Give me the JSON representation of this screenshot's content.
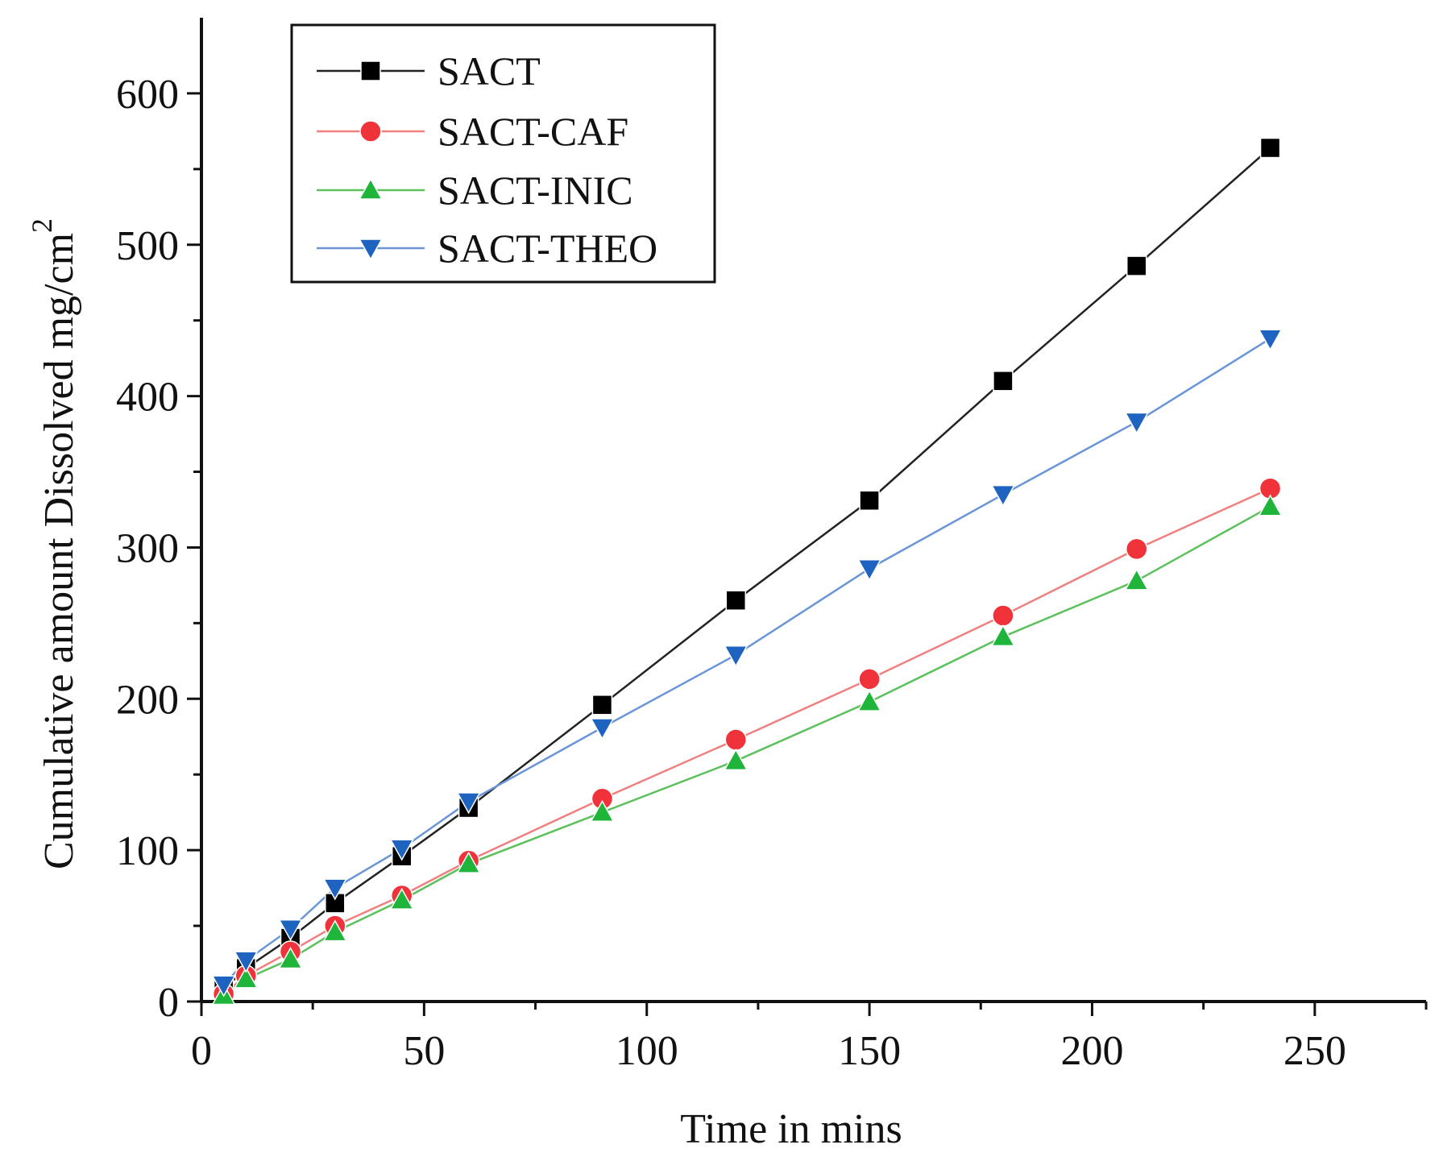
{
  "chart_data": {
    "type": "line",
    "title": "",
    "xlabel": "Time in mins",
    "ylabel_main": "Cumulative amount Dissolved mg/cm",
    "ylabel_superscript": "2",
    "xlim": [
      0,
      275
    ],
    "ylim": [
      0,
      650
    ],
    "x_ticks": [
      0,
      50,
      100,
      150,
      200,
      250
    ],
    "x_tick_labels": [
      "0",
      "50",
      "100",
      "150",
      "200",
      "250"
    ],
    "x_minor_ticks": [
      25,
      75,
      125,
      175,
      225,
      275
    ],
    "y_ticks": [
      0,
      100,
      200,
      300,
      400,
      500,
      600
    ],
    "y_tick_labels": [
      "0",
      "100",
      "200",
      "300",
      "400",
      "500",
      "600"
    ],
    "y_minor_ticks": [
      50,
      150,
      250,
      350,
      450,
      550
    ],
    "grid": false,
    "legend_position": "top-left",
    "x": [
      5,
      10,
      20,
      30,
      45,
      60,
      90,
      120,
      150,
      180,
      210,
      240
    ],
    "series": [
      {
        "name": "SACT",
        "marker": "square",
        "line_color": "#222222",
        "marker_color": "#000000",
        "values": [
          8,
          22,
          42,
          65,
          96,
          128,
          196,
          265,
          331,
          410,
          486,
          564
        ]
      },
      {
        "name": "SACT-CAF",
        "marker": "circle",
        "line_color": "#f08080",
        "marker_color": "#f0323a",
        "values": [
          5,
          17,
          33,
          50,
          70,
          93,
          134,
          173,
          213,
          255,
          299,
          339
        ]
      },
      {
        "name": "SACT-INIC",
        "marker": "triangle-up",
        "line_color": "#5cc15c",
        "marker_color": "#1fb53a",
        "values": [
          4,
          15,
          28,
          46,
          67,
          91,
          125,
          159,
          198,
          241,
          278,
          327
        ]
      },
      {
        "name": "SACT-THEO",
        "marker": "triangle-down",
        "line_color": "#6a95d6",
        "marker_color": "#1f63c0",
        "values": [
          11,
          27,
          48,
          75,
          101,
          132,
          181,
          229,
          286,
          335,
          383,
          438
        ]
      }
    ]
  }
}
